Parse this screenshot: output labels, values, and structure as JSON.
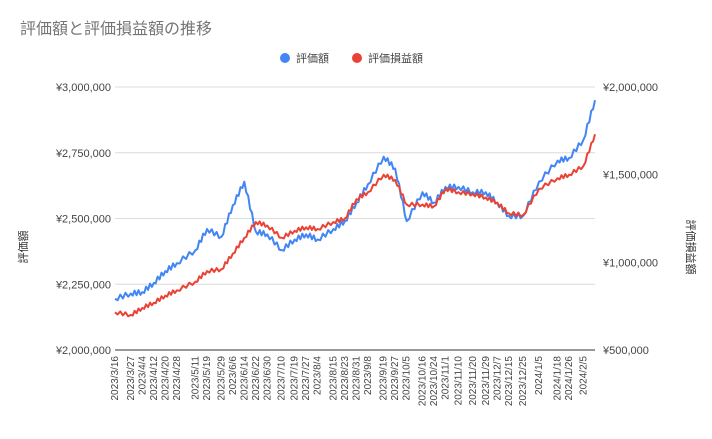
{
  "chart_data": {
    "type": "line",
    "title": "評価額と評価損益額の推移",
    "legend_position": "top",
    "grid": true,
    "y_left": {
      "label": "評価額",
      "range": [
        2000000,
        3000000
      ],
      "ticks": [
        2000000,
        2250000,
        2500000,
        2750000,
        3000000
      ],
      "tick_labels": [
        "¥2,000,000",
        "¥2,250,000",
        "¥2,500,000",
        "¥2,750,000",
        "¥3,000,000"
      ]
    },
    "y_right": {
      "label": "評価損益額",
      "range": [
        500000,
        2000000
      ],
      "ticks": [
        500000,
        1000000,
        1500000,
        2000000
      ],
      "tick_labels": [
        "¥500,000",
        "¥1,000,000",
        "¥1,500,000",
        "¥2,000,000"
      ]
    },
    "x_tick_labels": [
      "2023/3/16",
      "2023/3/27",
      "2023/4/4",
      "2023/4/12",
      "2023/4/20",
      "2023/4/28",
      "2023/5/11",
      "2023/5/19",
      "2023/5/29",
      "2023/6/6",
      "2023/6/14",
      "2023/6/22",
      "2023/6/30",
      "2023/7/10",
      "2023/7/19",
      "2023/7/27",
      "2023/8/4",
      "2023/8/15",
      "2023/8/23",
      "2023/8/31",
      "2023/9/8",
      "2023/9/19",
      "2023/9/27",
      "2023/10/5",
      "2023/10/16",
      "2023/10/24",
      "2023/11/1",
      "2023/11/10",
      "2023/11/20",
      "2023/11/29",
      "2023/12/7",
      "2023/12/15",
      "2023/12/25",
      "2024/1/5",
      "2024/1/18",
      "2024/1/26",
      "2024/2/5"
    ],
    "series": [
      {
        "name": "評価額",
        "axis": "left",
        "color": "#4285f4",
        "x": [
          "2023/3/16",
          "2023/3/27",
          "2023/4/4",
          "2023/4/12",
          "2023/4/20",
          "2023/4/28",
          "2023/5/11",
          "2023/5/19",
          "2023/5/29",
          "2023/6/6",
          "2023/6/14",
          "2023/6/22",
          "2023/6/30",
          "2023/7/10",
          "2023/7/19",
          "2023/7/27",
          "2023/8/4",
          "2023/8/15",
          "2023/8/23",
          "2023/8/31",
          "2023/9/8",
          "2023/9/19",
          "2023/9/27",
          "2023/10/5",
          "2023/10/16",
          "2023/10/24",
          "2023/11/1",
          "2023/11/10",
          "2023/11/20",
          "2023/11/29",
          "2023/12/7",
          "2023/12/15",
          "2023/12/25",
          "2024/1/5",
          "2024/1/18",
          "2024/1/26",
          "2024/2/5",
          "2024/2/13"
        ],
        "values": [
          2195000,
          2215000,
          2220000,
          2255000,
          2300000,
          2330000,
          2380000,
          2460000,
          2430000,
          2550000,
          2640000,
          2450000,
          2440000,
          2380000,
          2420000,
          2440000,
          2420000,
          2460000,
          2490000,
          2560000,
          2630000,
          2735000,
          2690000,
          2490000,
          2600000,
          2560000,
          2620000,
          2620000,
          2600000,
          2600000,
          2560000,
          2510000,
          2510000,
          2640000,
          2720000,
          2730000,
          2800000,
          2950000
        ]
      },
      {
        "name": "評価損益額",
        "axis": "right",
        "color": "#ea4335",
        "x": [
          "2023/3/16",
          "2023/3/27",
          "2023/4/4",
          "2023/4/12",
          "2023/4/20",
          "2023/4/28",
          "2023/5/11",
          "2023/5/19",
          "2023/5/29",
          "2023/6/6",
          "2023/6/14",
          "2023/6/22",
          "2023/6/30",
          "2023/7/10",
          "2023/7/19",
          "2023/7/27",
          "2023/8/4",
          "2023/8/15",
          "2023/8/23",
          "2023/8/31",
          "2023/9/8",
          "2023/9/19",
          "2023/9/27",
          "2023/10/5",
          "2023/10/16",
          "2023/10/24",
          "2023/11/1",
          "2023/11/10",
          "2023/11/20",
          "2023/11/29",
          "2023/12/7",
          "2023/12/15",
          "2023/12/25",
          "2024/1/5",
          "2024/1/18",
          "2024/1/26",
          "2024/2/5",
          "2024/2/13"
        ],
        "values": [
          715000,
          700000,
          740000,
          770000,
          810000,
          840000,
          890000,
          950000,
          960000,
          1050000,
          1140000,
          1230000,
          1210000,
          1140000,
          1180000,
          1200000,
          1190000,
          1230000,
          1250000,
          1360000,
          1400000,
          1500000,
          1470000,
          1330000,
          1330000,
          1320000,
          1420000,
          1400000,
          1390000,
          1370000,
          1340000,
          1280000,
          1270000,
          1420000,
          1480000,
          1500000,
          1550000,
          1730000
        ]
      }
    ]
  }
}
